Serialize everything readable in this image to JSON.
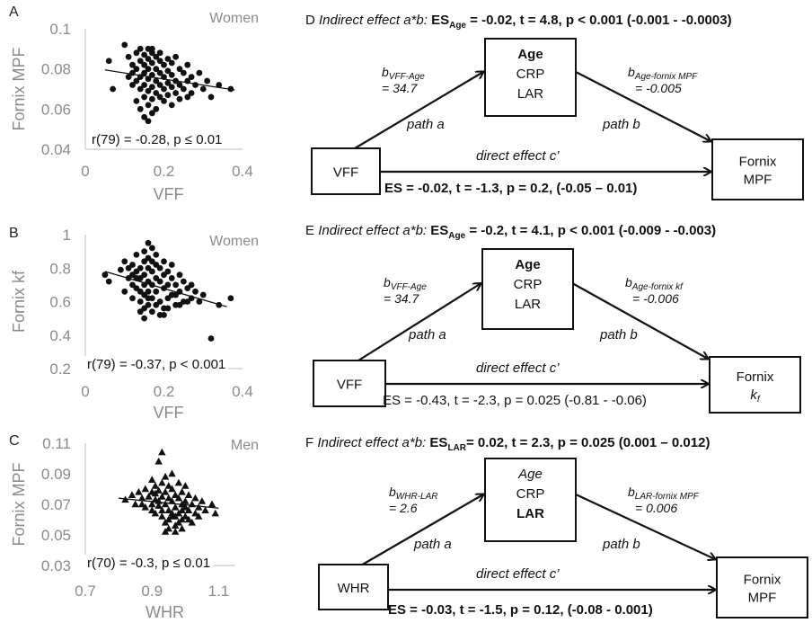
{
  "scatter_panels": [
    {
      "letter": "A",
      "group": "Women",
      "ylabel": "Fornix MPF",
      "xlabel": "VFF",
      "xticks": [
        "0",
        "0.2",
        "0.4"
      ],
      "yticks": [
        "0.1",
        "0.08",
        "0.06",
        "0.04"
      ],
      "annotation": "r(79) = -0.28, p ≤ 0.01"
    },
    {
      "letter": "B",
      "group": "Women",
      "ylabel": "Fornix kf",
      "xlabel": "VFF",
      "xticks": [
        "0",
        "0.2",
        "0.4"
      ],
      "yticks": [
        "1",
        "0.8",
        "0.6",
        "0.4",
        "0.2"
      ],
      "annotation": "r(79) = -0.37, p < 0.001"
    },
    {
      "letter": "C",
      "group": "Men",
      "ylabel": "Fornix MPF",
      "xlabel": "WHR",
      "xticks": [
        "0.7",
        "0.9",
        "1.1"
      ],
      "yticks": [
        "0.11",
        "0.09",
        "0.07",
        "0.05",
        "0.03"
      ],
      "annotation": "r(70) = -0.3, p ≤ 0.01"
    }
  ],
  "chart_data": [
    {
      "type": "scatter",
      "panel": "A",
      "xlabel": "VFF",
      "ylabel": "Fornix MPF",
      "xlim": [
        0,
        0.4
      ],
      "ylim": [
        0.04,
        0.1
      ],
      "marker": "circle",
      "trendline": {
        "x": [
          0.05,
          0.38
        ],
        "y": [
          0.0795,
          0.0695
        ]
      },
      "points": [
        [
          0.06,
          0.084
        ],
        [
          0.07,
          0.07
        ],
        [
          0.1,
          0.092
        ],
        [
          0.11,
          0.086
        ],
        [
          0.12,
          0.082
        ],
        [
          0.12,
          0.078
        ],
        [
          0.12,
          0.072
        ],
        [
          0.13,
          0.088
        ],
        [
          0.13,
          0.08
        ],
        [
          0.13,
          0.074
        ],
        [
          0.14,
          0.09
        ],
        [
          0.14,
          0.084
        ],
        [
          0.14,
          0.076
        ],
        [
          0.14,
          0.07
        ],
        [
          0.15,
          0.087
        ],
        [
          0.15,
          0.082
        ],
        [
          0.15,
          0.078
        ],
        [
          0.15,
          0.072
        ],
        [
          0.15,
          0.066
        ],
        [
          0.16,
          0.09
        ],
        [
          0.16,
          0.085
        ],
        [
          0.16,
          0.08
        ],
        [
          0.16,
          0.075
        ],
        [
          0.16,
          0.069
        ],
        [
          0.16,
          0.062
        ],
        [
          0.17,
          0.088
        ],
        [
          0.17,
          0.083
        ],
        [
          0.17,
          0.077
        ],
        [
          0.17,
          0.071
        ],
        [
          0.17,
          0.065
        ],
        [
          0.17,
          0.058
        ],
        [
          0.18,
          0.086
        ],
        [
          0.18,
          0.08
        ],
        [
          0.18,
          0.074
        ],
        [
          0.18,
          0.068
        ],
        [
          0.18,
          0.06
        ],
        [
          0.19,
          0.084
        ],
        [
          0.19,
          0.078
        ],
        [
          0.19,
          0.072
        ],
        [
          0.19,
          0.066
        ],
        [
          0.2,
          0.082
        ],
        [
          0.2,
          0.076
        ],
        [
          0.2,
          0.07
        ],
        [
          0.21,
          0.085
        ],
        [
          0.21,
          0.079
        ],
        [
          0.21,
          0.073
        ],
        [
          0.21,
          0.067
        ],
        [
          0.22,
          0.083
        ],
        [
          0.22,
          0.077
        ],
        [
          0.22,
          0.071
        ],
        [
          0.23,
          0.086
        ],
        [
          0.23,
          0.074
        ],
        [
          0.23,
          0.068
        ],
        [
          0.24,
          0.08
        ],
        [
          0.24,
          0.072
        ],
        [
          0.25,
          0.078
        ],
        [
          0.25,
          0.07
        ],
        [
          0.26,
          0.082
        ],
        [
          0.26,
          0.074
        ],
        [
          0.27,
          0.076
        ],
        [
          0.27,
          0.068
        ],
        [
          0.28,
          0.072
        ],
        [
          0.29,
          0.078
        ],
        [
          0.3,
          0.07
        ],
        [
          0.31,
          0.074
        ],
        [
          0.32,
          0.066
        ],
        [
          0.34,
          0.072
        ],
        [
          0.37,
          0.07
        ],
        [
          0.15,
          0.056
        ],
        [
          0.16,
          0.054
        ],
        [
          0.14,
          0.06
        ],
        [
          0.13,
          0.064
        ],
        [
          0.2,
          0.064
        ],
        [
          0.22,
          0.062
        ],
        [
          0.19,
          0.088
        ],
        [
          0.17,
          0.09
        ],
        [
          0.24,
          0.065
        ],
        [
          0.26,
          0.066
        ],
        [
          0.11,
          0.076
        ]
      ]
    },
    {
      "type": "scatter",
      "panel": "B",
      "xlabel": "VFF",
      "ylabel": "Fornix kf",
      "xlim": [
        0,
        0.4
      ],
      "ylim": [
        0.2,
        1.0
      ],
      "marker": "circle",
      "trendline": {
        "x": [
          0.05,
          0.36
        ],
        "y": [
          0.78,
          0.57
        ]
      },
      "points": [
        [
          0.05,
          0.76
        ],
        [
          0.06,
          0.72
        ],
        [
          0.09,
          0.79
        ],
        [
          0.1,
          0.84
        ],
        [
          0.1,
          0.66
        ],
        [
          0.11,
          0.74
        ],
        [
          0.12,
          0.82
        ],
        [
          0.12,
          0.7
        ],
        [
          0.12,
          0.62
        ],
        [
          0.13,
          0.78
        ],
        [
          0.13,
          0.88
        ],
        [
          0.13,
          0.68
        ],
        [
          0.14,
          0.8
        ],
        [
          0.14,
          0.74
        ],
        [
          0.14,
          0.6
        ],
        [
          0.14,
          0.54
        ],
        [
          0.15,
          0.9
        ],
        [
          0.15,
          0.84
        ],
        [
          0.15,
          0.76
        ],
        [
          0.15,
          0.7
        ],
        [
          0.15,
          0.64
        ],
        [
          0.15,
          0.5
        ],
        [
          0.16,
          0.95
        ],
        [
          0.16,
          0.86
        ],
        [
          0.16,
          0.8
        ],
        [
          0.16,
          0.72
        ],
        [
          0.16,
          0.66
        ],
        [
          0.16,
          0.58
        ],
        [
          0.17,
          0.92
        ],
        [
          0.17,
          0.78
        ],
        [
          0.17,
          0.7
        ],
        [
          0.17,
          0.62
        ],
        [
          0.17,
          0.54
        ],
        [
          0.18,
          0.88
        ],
        [
          0.18,
          0.82
        ],
        [
          0.18,
          0.74
        ],
        [
          0.18,
          0.66
        ],
        [
          0.19,
          0.8
        ],
        [
          0.19,
          0.72
        ],
        [
          0.19,
          0.6
        ],
        [
          0.2,
          0.84
        ],
        [
          0.2,
          0.76
        ],
        [
          0.2,
          0.68
        ],
        [
          0.2,
          0.56
        ],
        [
          0.21,
          0.78
        ],
        [
          0.21,
          0.7
        ],
        [
          0.21,
          0.62
        ],
        [
          0.22,
          0.82
        ],
        [
          0.22,
          0.74
        ],
        [
          0.22,
          0.64
        ],
        [
          0.23,
          0.7
        ],
        [
          0.23,
          0.58
        ],
        [
          0.24,
          0.76
        ],
        [
          0.24,
          0.66
        ],
        [
          0.25,
          0.72
        ],
        [
          0.25,
          0.6
        ],
        [
          0.26,
          0.68
        ],
        [
          0.27,
          0.62
        ],
        [
          0.28,
          0.66
        ],
        [
          0.29,
          0.6
        ],
        [
          0.3,
          0.64
        ],
        [
          0.32,
          0.38
        ],
        [
          0.34,
          0.58
        ],
        [
          0.37,
          0.62
        ],
        [
          0.13,
          0.74
        ],
        [
          0.14,
          0.66
        ],
        [
          0.18,
          0.58
        ],
        [
          0.19,
          0.52
        ],
        [
          0.21,
          0.56
        ],
        [
          0.23,
          0.64
        ],
        [
          0.26,
          0.6
        ],
        [
          0.12,
          0.76
        ],
        [
          0.11,
          0.8
        ],
        [
          0.17,
          0.84
        ],
        [
          0.24,
          0.58
        ],
        [
          0.27,
          0.7
        ],
        [
          0.16,
          0.62
        ],
        [
          0.2,
          0.52
        ],
        [
          0.15,
          0.56
        ]
      ]
    },
    {
      "type": "scatter",
      "panel": "C",
      "xlabel": "WHR",
      "ylabel": "Fornix MPF",
      "xlim": [
        0.7,
        1.15
      ],
      "ylim": [
        0.03,
        0.11
      ],
      "marker": "triangle",
      "trendline": {
        "x": [
          0.8,
          1.1
        ],
        "y": [
          0.074,
          0.0675
        ]
      },
      "points": [
        [
          0.82,
          0.073
        ],
        [
          0.84,
          0.076
        ],
        [
          0.85,
          0.07
        ],
        [
          0.86,
          0.078
        ],
        [
          0.87,
          0.074
        ],
        [
          0.88,
          0.08
        ],
        [
          0.88,
          0.068
        ],
        [
          0.89,
          0.075
        ],
        [
          0.9,
          0.086
        ],
        [
          0.9,
          0.078
        ],
        [
          0.9,
          0.07
        ],
        [
          0.91,
          0.082
        ],
        [
          0.91,
          0.073
        ],
        [
          0.91,
          0.064
        ],
        [
          0.92,
          0.098
        ],
        [
          0.92,
          0.079
        ],
        [
          0.92,
          0.069
        ],
        [
          0.93,
          0.104
        ],
        [
          0.93,
          0.084
        ],
        [
          0.93,
          0.075
        ],
        [
          0.93,
          0.066
        ],
        [
          0.94,
          0.088
        ],
        [
          0.94,
          0.078
        ],
        [
          0.94,
          0.07
        ],
        [
          0.94,
          0.058
        ],
        [
          0.95,
          0.082
        ],
        [
          0.95,
          0.074
        ],
        [
          0.95,
          0.066
        ],
        [
          0.95,
          0.054
        ],
        [
          0.96,
          0.09
        ],
        [
          0.96,
          0.08
        ],
        [
          0.96,
          0.072
        ],
        [
          0.96,
          0.062
        ],
        [
          0.97,
          0.076
        ],
        [
          0.97,
          0.068
        ],
        [
          0.97,
          0.056
        ],
        [
          0.98,
          0.084
        ],
        [
          0.98,
          0.074
        ],
        [
          0.98,
          0.064
        ],
        [
          0.99,
          0.078
        ],
        [
          0.99,
          0.07
        ],
        [
          0.99,
          0.06
        ],
        [
          1.0,
          0.082
        ],
        [
          1.0,
          0.072
        ],
        [
          1.0,
          0.062
        ],
        [
          1.01,
          0.076
        ],
        [
          1.01,
          0.066
        ],
        [
          1.02,
          0.07
        ],
        [
          1.02,
          0.058
        ],
        [
          1.03,
          0.074
        ],
        [
          1.03,
          0.064
        ],
        [
          1.04,
          0.068
        ],
        [
          1.05,
          0.072
        ],
        [
          1.06,
          0.066
        ],
        [
          1.08,
          0.07
        ],
        [
          1.09,
          0.064
        ],
        [
          0.95,
          0.06
        ],
        [
          0.97,
          0.052
        ],
        [
          0.99,
          0.054
        ],
        [
          0.93,
          0.062
        ],
        [
          0.9,
          0.066
        ],
        [
          0.87,
          0.07
        ],
        [
          1.0,
          0.068
        ],
        [
          0.96,
          0.064
        ],
        [
          0.98,
          0.058
        ],
        [
          0.92,
          0.072
        ],
        [
          1.04,
          0.062
        ],
        [
          0.94,
          0.052
        ],
        [
          1.01,
          0.06
        ],
        [
          0.97,
          0.062
        ],
        [
          0.91,
          0.077
        ],
        [
          0.99,
          0.066
        ]
      ]
    }
  ],
  "mediation_panels": [
    {
      "letter": "D",
      "header_italic": "Indirect effect a*b: ",
      "header_es": "ES",
      "header_es_sub": "Age",
      "header_rest": " = -0.02, t = 4.8, p < 0.001 (-0.001 - -0.0003)",
      "header_bold": true,
      "predictor": "VFF",
      "mediators": [
        "Age",
        "CRP",
        "LAR"
      ],
      "mediator_emphasis": "Age",
      "outcome_line1": "Fornix",
      "outcome_line2": "MPF",
      "outcome_line2_italic": false,
      "coef_a_label": "b",
      "coef_a_sub": "VFF-Age",
      "coef_a_value": "= 34.7",
      "coef_b_label": "b",
      "coef_b_sub": "Age-fornix MPF",
      "coef_b_value": "= -0.005",
      "path_a": "path a",
      "path_b": "path b",
      "direct": "direct effect c’",
      "direct_stats": "ES = -0.02, t = -1.3, p = 0.2, (-0.05 – 0.01)",
      "direct_stats_bold": true
    },
    {
      "letter": "E",
      "header_italic": "Indirect effect a*b: ",
      "header_es": "ES",
      "header_es_sub": "Age",
      "header_rest": " = -0.2, t = 4.1, p < 0.001 (-0.009 - -0.003)",
      "header_bold": true,
      "predictor": "VFF",
      "mediators": [
        "Age",
        "CRP",
        "LAR"
      ],
      "mediator_emphasis": "Age",
      "outcome_line1": "Fornix",
      "outcome_line2": "k",
      "outcome_line2_sub": "f",
      "outcome_line2_italic": true,
      "coef_a_label": "b",
      "coef_a_sub": "VFF-Age",
      "coef_a_value": "= 34.7",
      "coef_b_label": "b",
      "coef_b_sub": "Age-fornix kf",
      "coef_b_value": "= -0.006",
      "path_a": "path a",
      "path_b": "path b",
      "direct": "direct effect c’",
      "direct_stats": "ES = -0.43, t = -2.3, p = 0.025 (-0.81 - -0.06)",
      "direct_stats_bold": false
    },
    {
      "letter": "F",
      "header_italic": "Indirect effect a*b: ",
      "header_es": "ES",
      "header_es_sub": "LAR",
      "header_rest": "= 0.02, t = 2.3, p = 0.025 (0.001 – 0.012)",
      "header_bold": true,
      "predictor": "WHR",
      "mediators": [
        "Age",
        "CRP",
        "LAR"
      ],
      "mediator_emphasis": "LAR",
      "outcome_line1": "Fornix",
      "outcome_line2": "MPF",
      "outcome_line2_italic": false,
      "coef_a_label": "b",
      "coef_a_sub": "WHR-LAR",
      "coef_a_value": "= 2.6",
      "coef_b_label": "b",
      "coef_b_sub": "LAR-fornix MPF",
      "coef_b_value": "= 0.006",
      "path_a": "path a",
      "path_b": "path b",
      "direct": "direct effect c’",
      "direct_stats": "ES = -0.03, t = -1.5, p = 0.12, (-0.08 - 0.001)",
      "direct_stats_bold": true
    }
  ]
}
